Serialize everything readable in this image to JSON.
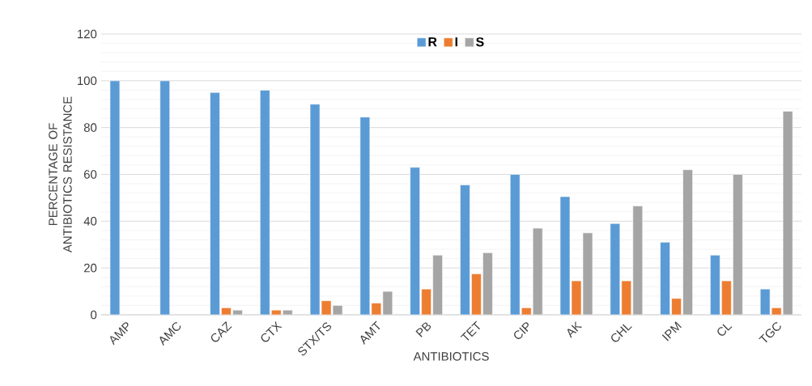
{
  "chart_data": {
    "type": "bar",
    "xlabel": "ANTIBIOTICS",
    "ylabel": "PERCENTAGE OF ANTIBIOTICS RESISTANCE",
    "categories": [
      "AMP",
      "AMC",
      "CAZ",
      "CTX",
      "STX/TS",
      "AMT",
      "PB",
      "TET",
      "CIP",
      "AK",
      "CHL",
      "IPM",
      "CL",
      "TGC"
    ],
    "series": [
      {
        "name": "R",
        "color": "#5b9bd5",
        "values": [
          100,
          100,
          95,
          96,
          90,
          84.5,
          63,
          55.5,
          60,
          50.5,
          39,
          31,
          25.5,
          11
        ]
      },
      {
        "name": "I",
        "color": "#ed7d31",
        "values": [
          null,
          null,
          3,
          2,
          6,
          5,
          11,
          17.5,
          3,
          14.5,
          14.5,
          7,
          14.5,
          3
        ]
      },
      {
        "name": "S",
        "color": "#a5a5a5",
        "values": [
          null,
          null,
          2,
          2,
          4,
          10,
          25.5,
          26.5,
          37,
          35,
          46.5,
          62,
          60,
          87
        ]
      }
    ],
    "ylim": [
      0,
      120
    ],
    "yticks": [
      0,
      20,
      40,
      60,
      80,
      100,
      120
    ],
    "grid": "y",
    "legend": "top"
  }
}
